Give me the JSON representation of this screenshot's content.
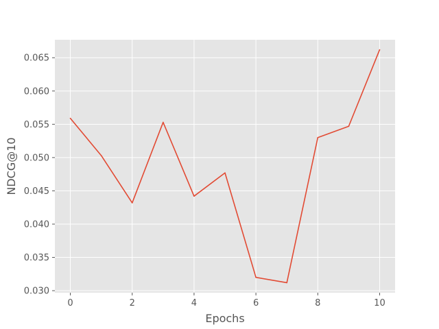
{
  "chart_data": {
    "type": "line",
    "title": "",
    "xlabel": "Epochs",
    "ylabel": "NDCG@10",
    "xlim": [
      -0.5,
      10.5
    ],
    "ylim": [
      0.0297,
      0.0677
    ],
    "x_ticks": [
      0,
      2,
      4,
      6,
      8,
      10
    ],
    "x_tick_labels": [
      "0",
      "2",
      "4",
      "6",
      "8",
      "10"
    ],
    "y_ticks": [
      0.03,
      0.035,
      0.04,
      0.045,
      0.05,
      0.055,
      0.06,
      0.065
    ],
    "y_tick_labels": [
      "0.030",
      "0.035",
      "0.040",
      "0.045",
      "0.050",
      "0.055",
      "0.060",
      "0.065"
    ],
    "grid": true,
    "style": "ggplot",
    "colors": {
      "background": "#e5e5e5",
      "grid": "#ffffff",
      "line": "#e24a33",
      "tick_text": "#555555"
    },
    "series": [
      {
        "x": [
          0,
          1,
          2,
          3,
          4,
          5,
          6,
          7,
          8,
          9,
          10
        ],
        "values": [
          0.0559,
          0.0503,
          0.0432,
          0.0553,
          0.0442,
          0.0477,
          0.032,
          0.0312,
          0.053,
          0.0547,
          0.0662
        ]
      }
    ]
  }
}
